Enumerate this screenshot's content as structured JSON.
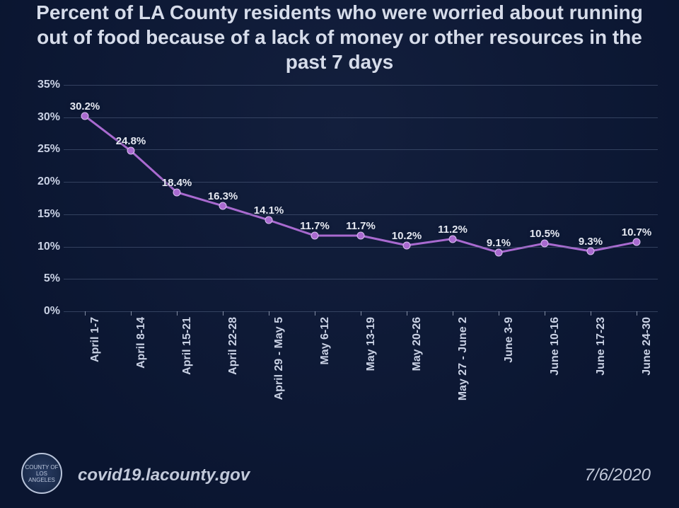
{
  "title": "Percent of LA County residents who were worried about running out of food because of a lack of money or other resources in the past 7 days",
  "title_fontsize": 28,
  "title_color": "#d6dcea",
  "background_gradient_top": "#131f3d",
  "background_gradient_bottom": "#0a1530",
  "footer_url": "covid19.lacounty.gov",
  "footer_date": "7/6/2020",
  "footer_color": "#c2c9da",
  "footer_fontsize": 24,
  "seal_text": "COUNTY OF LOS ANGELES",
  "chart": {
    "type": "line",
    "ylim": [
      0,
      35
    ],
    "ytick_step": 5,
    "ytick_suffix": "%",
    "ytick_fontsize": 16,
    "ytick_color": "#c9d1e4",
    "xtick_fontsize": 16,
    "xtick_color": "#c9d1e4",
    "grid_color": "#5a6a8a",
    "grid_opacity": 0.5,
    "line_color": "#a96ad0",
    "line_width": 3,
    "marker_color": "#a96ad0",
    "marker_border": "#d9bff0",
    "marker_radius": 4.5,
    "data_label_fontsize": 15,
    "data_label_color": "#e6e9f2",
    "data_label_suffix": "%",
    "categories": [
      "April 1-7",
      "April 8-14",
      "April 15-21",
      "April 22-28",
      "April 29 - May 5",
      "May 6-12",
      "May 13-19",
      "May 20-26",
      "May 27 - June 2",
      "June 3-9",
      "June 10-16",
      "June 17-23",
      "June 24-30"
    ],
    "values": [
      30.2,
      24.8,
      18.4,
      16.3,
      14.1,
      11.7,
      11.7,
      10.2,
      11.2,
      9.1,
      10.5,
      9.3,
      10.7
    ]
  }
}
